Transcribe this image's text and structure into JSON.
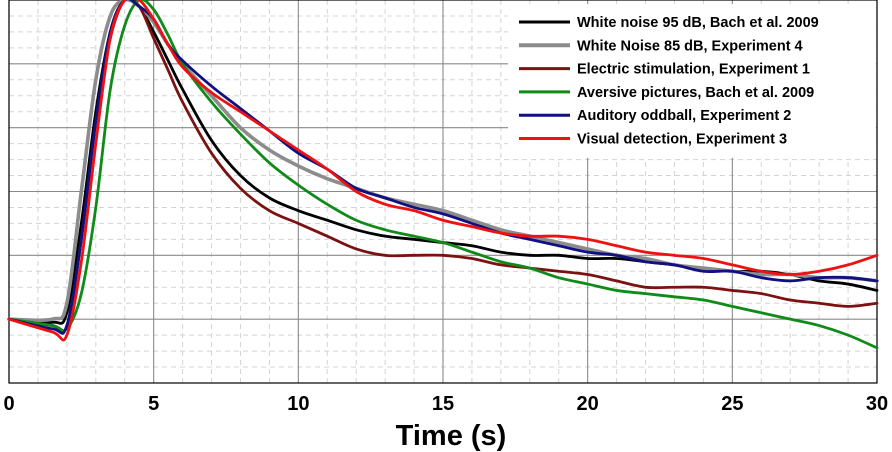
{
  "chart_data": {
    "type": "line",
    "title": "",
    "xlabel": "Time (s)",
    "ylabel": "",
    "xlim": [
      0,
      30
    ],
    "ylim": [
      -0.2,
      1.0
    ],
    "xticks": [
      0,
      5,
      10,
      15,
      20,
      25,
      30
    ],
    "xtick_labels": [
      "0",
      "5",
      "10",
      "15",
      "20",
      "25",
      "30"
    ],
    "yticks_major": [
      -0.2,
      0,
      0.2,
      0.4,
      0.6,
      0.8,
      1.0
    ],
    "grid": true,
    "legend_position": "top-right",
    "series": [
      {
        "name": "White noise 95 dB, Bach et al. 2009",
        "color": "#000000",
        "points": [
          [
            0,
            0
          ],
          [
            1.5,
            -0.01
          ],
          [
            2,
            0.02
          ],
          [
            2.5,
            0.3
          ],
          [
            3,
            0.65
          ],
          [
            3.5,
            0.9
          ],
          [
            4,
            1.0
          ],
          [
            4.5,
            0.98
          ],
          [
            5,
            0.9
          ],
          [
            5.5,
            0.81
          ],
          [
            6,
            0.72
          ],
          [
            7,
            0.56
          ],
          [
            8,
            0.45
          ],
          [
            9,
            0.38
          ],
          [
            10,
            0.34
          ],
          [
            11,
            0.31
          ],
          [
            12,
            0.28
          ],
          [
            13,
            0.26
          ],
          [
            14,
            0.25
          ],
          [
            15,
            0.24
          ],
          [
            16,
            0.23
          ],
          [
            17,
            0.21
          ],
          [
            18,
            0.2
          ],
          [
            19,
            0.2
          ],
          [
            20,
            0.19
          ],
          [
            21,
            0.19
          ],
          [
            22,
            0.18
          ],
          [
            23,
            0.17
          ],
          [
            24,
            0.16
          ],
          [
            25,
            0.15
          ],
          [
            26,
            0.15
          ],
          [
            27,
            0.14
          ],
          [
            28,
            0.12
          ],
          [
            29,
            0.11
          ],
          [
            30,
            0.09
          ]
        ]
      },
      {
        "name": "White Noise 85 dB, Experiment 4",
        "color": "#8c8c8c",
        "points": [
          [
            0,
            0
          ],
          [
            1.5,
            0
          ],
          [
            2,
            0.05
          ],
          [
            2.5,
            0.4
          ],
          [
            3,
            0.75
          ],
          [
            3.5,
            0.95
          ],
          [
            4,
            1.0
          ],
          [
            4.5,
            0.98
          ],
          [
            5,
            0.93
          ],
          [
            5.5,
            0.86
          ],
          [
            6,
            0.8
          ],
          [
            7,
            0.7
          ],
          [
            8,
            0.6
          ],
          [
            9,
            0.53
          ],
          [
            10,
            0.48
          ],
          [
            11,
            0.44
          ],
          [
            12,
            0.41
          ],
          [
            13,
            0.38
          ],
          [
            14,
            0.36
          ],
          [
            15,
            0.34
          ],
          [
            16,
            0.31
          ],
          [
            17,
            0.28
          ],
          [
            18,
            0.26
          ],
          [
            19,
            0.24
          ],
          [
            20,
            0.22
          ],
          [
            21,
            0.2
          ],
          [
            22,
            0.19
          ],
          [
            23,
            0.17
          ],
          [
            24,
            0.16
          ],
          [
            25,
            0.15
          ],
          [
            26,
            0.14
          ],
          [
            27,
            0.14
          ],
          [
            28,
            0.13
          ],
          [
            29,
            0.13
          ],
          [
            30,
            0.12
          ]
        ]
      },
      {
        "name": "Electric stimulation, Experiment 1",
        "color": "#7b1212",
        "points": [
          [
            0,
            0
          ],
          [
            1.5,
            -0.02
          ],
          [
            2,
            -0.02
          ],
          [
            2.5,
            0.25
          ],
          [
            3,
            0.62
          ],
          [
            3.5,
            0.88
          ],
          [
            4,
            1.0
          ],
          [
            4.5,
            0.98
          ],
          [
            5,
            0.88
          ],
          [
            5.5,
            0.78
          ],
          [
            6,
            0.68
          ],
          [
            7,
            0.52
          ],
          [
            8,
            0.41
          ],
          [
            9,
            0.34
          ],
          [
            10,
            0.3
          ],
          [
            11,
            0.26
          ],
          [
            12,
            0.22
          ],
          [
            13,
            0.2
          ],
          [
            14,
            0.2
          ],
          [
            15,
            0.2
          ],
          [
            16,
            0.19
          ],
          [
            17,
            0.17
          ],
          [
            18,
            0.16
          ],
          [
            19,
            0.15
          ],
          [
            20,
            0.14
          ],
          [
            21,
            0.12
          ],
          [
            22,
            0.1
          ],
          [
            23,
            0.1
          ],
          [
            24,
            0.1
          ],
          [
            25,
            0.09
          ],
          [
            26,
            0.08
          ],
          [
            27,
            0.06
          ],
          [
            28,
            0.05
          ],
          [
            29,
            0.04
          ],
          [
            30,
            0.05
          ]
        ]
      },
      {
        "name": "Aversive pictures, Bach et al. 2009",
        "color": "#108a18",
        "points": [
          [
            0,
            0
          ],
          [
            1.5,
            -0.02
          ],
          [
            2,
            -0.03
          ],
          [
            2.5,
            0.08
          ],
          [
            3,
            0.35
          ],
          [
            3.5,
            0.72
          ],
          [
            4,
            0.92
          ],
          [
            4.5,
            1.0
          ],
          [
            5,
            0.97
          ],
          [
            5.5,
            0.89
          ],
          [
            6,
            0.8
          ],
          [
            7,
            0.68
          ],
          [
            8,
            0.58
          ],
          [
            9,
            0.49
          ],
          [
            10,
            0.42
          ],
          [
            11,
            0.36
          ],
          [
            12,
            0.31
          ],
          [
            13,
            0.28
          ],
          [
            14,
            0.26
          ],
          [
            15,
            0.24
          ],
          [
            16,
            0.21
          ],
          [
            17,
            0.18
          ],
          [
            18,
            0.16
          ],
          [
            19,
            0.13
          ],
          [
            20,
            0.11
          ],
          [
            21,
            0.09
          ],
          [
            22,
            0.08
          ],
          [
            23,
            0.07
          ],
          [
            24,
            0.06
          ],
          [
            25,
            0.04
          ],
          [
            26,
            0.02
          ],
          [
            27,
            0
          ],
          [
            28,
            -0.02
          ],
          [
            29,
            -0.05
          ],
          [
            30,
            -0.09
          ]
        ]
      },
      {
        "name": "Auditory oddball, Experiment 2",
        "color": "#101080",
        "points": [
          [
            0,
            0
          ],
          [
            1.5,
            -0.03
          ],
          [
            2,
            -0.02
          ],
          [
            2.5,
            0.25
          ],
          [
            3,
            0.62
          ],
          [
            3.5,
            0.9
          ],
          [
            4,
            1.0
          ],
          [
            4.5,
            0.98
          ],
          [
            5,
            0.94
          ],
          [
            5.5,
            0.86
          ],
          [
            6,
            0.81
          ],
          [
            7,
            0.73
          ],
          [
            8,
            0.66
          ],
          [
            9,
            0.59
          ],
          [
            10,
            0.52
          ],
          [
            11,
            0.47
          ],
          [
            12,
            0.41
          ],
          [
            13,
            0.38
          ],
          [
            14,
            0.35
          ],
          [
            15,
            0.33
          ],
          [
            16,
            0.3
          ],
          [
            17,
            0.27
          ],
          [
            18,
            0.25
          ],
          [
            19,
            0.23
          ],
          [
            20,
            0.21
          ],
          [
            21,
            0.2
          ],
          [
            22,
            0.18
          ],
          [
            23,
            0.17
          ],
          [
            24,
            0.15
          ],
          [
            25,
            0.15
          ],
          [
            26,
            0.13
          ],
          [
            27,
            0.12
          ],
          [
            28,
            0.13
          ],
          [
            29,
            0.13
          ],
          [
            30,
            0.12
          ]
        ]
      },
      {
        "name": "Visual detection, Experiment 3",
        "color": "#ee1111",
        "points": [
          [
            0,
            0
          ],
          [
            1.5,
            -0.04
          ],
          [
            2,
            -0.05
          ],
          [
            2.5,
            0.18
          ],
          [
            3,
            0.55
          ],
          [
            3.5,
            0.88
          ],
          [
            4,
            1.0
          ],
          [
            4.5,
            1.0
          ],
          [
            5,
            0.94
          ],
          [
            5.5,
            0.86
          ],
          [
            6,
            0.79
          ],
          [
            7,
            0.71
          ],
          [
            8,
            0.65
          ],
          [
            9,
            0.59
          ],
          [
            10,
            0.53
          ],
          [
            11,
            0.47
          ],
          [
            12,
            0.4
          ],
          [
            13,
            0.36
          ],
          [
            14,
            0.34
          ],
          [
            15,
            0.31
          ],
          [
            16,
            0.29
          ],
          [
            17,
            0.27
          ],
          [
            18,
            0.26
          ],
          [
            19,
            0.26
          ],
          [
            20,
            0.25
          ],
          [
            21,
            0.23
          ],
          [
            22,
            0.21
          ],
          [
            23,
            0.2
          ],
          [
            24,
            0.19
          ],
          [
            25,
            0.17
          ],
          [
            26,
            0.15
          ],
          [
            27,
            0.14
          ],
          [
            28,
            0.15
          ],
          [
            29,
            0.17
          ],
          [
            30,
            0.2
          ]
        ]
      }
    ]
  }
}
